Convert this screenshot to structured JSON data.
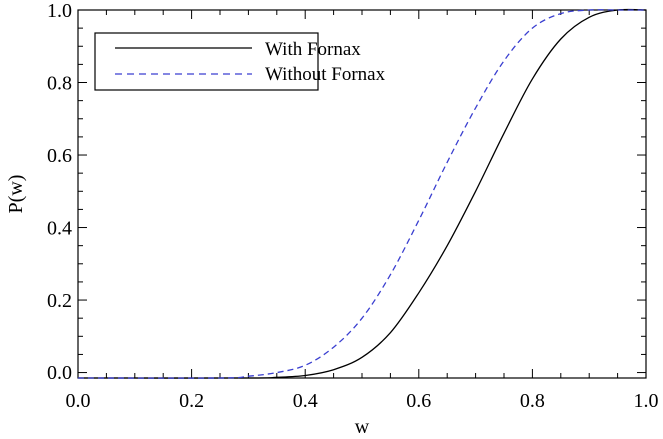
{
  "chart_data": {
    "type": "line",
    "xlabel": "w",
    "ylabel": "P(w)",
    "xlim": [
      0.0,
      1.0
    ],
    "ylim": [
      -0.015,
      1.0
    ],
    "x_ticks": [
      "0.0",
      "0.2",
      "0.4",
      "0.6",
      "0.8",
      "1.0"
    ],
    "y_ticks": [
      "0.0",
      "0.2",
      "0.4",
      "0.6",
      "0.8",
      "1.0"
    ],
    "grid": false,
    "legend_position": "top-left",
    "series": [
      {
        "name": "With Fornax",
        "color": "#000000",
        "line_style": "solid",
        "x": [
          0.0,
          0.3,
          0.35,
          0.4,
          0.45,
          0.5,
          0.55,
          0.6,
          0.65,
          0.7,
          0.75,
          0.8,
          0.85,
          0.9,
          0.95,
          1.0
        ],
        "y": [
          -0.015,
          -0.015,
          -0.013,
          -0.008,
          0.008,
          0.042,
          0.11,
          0.22,
          0.35,
          0.5,
          0.66,
          0.81,
          0.92,
          0.98,
          1.0,
          1.0
        ]
      },
      {
        "name": "Without Fornax",
        "color": "#3a3fd0",
        "line_style": "dashed",
        "x": [
          0.0,
          0.25,
          0.3,
          0.35,
          0.4,
          0.45,
          0.5,
          0.55,
          0.6,
          0.65,
          0.7,
          0.75,
          0.8,
          0.85,
          0.9,
          0.95,
          1.0
        ],
        "y": [
          -0.015,
          -0.015,
          -0.01,
          0.0,
          0.02,
          0.07,
          0.15,
          0.27,
          0.42,
          0.58,
          0.73,
          0.86,
          0.95,
          0.99,
          1.0,
          1.0,
          1.0
        ]
      }
    ]
  }
}
